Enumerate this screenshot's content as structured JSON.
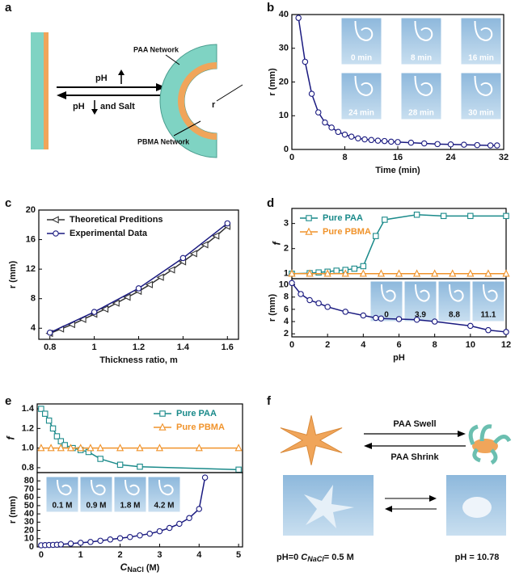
{
  "figure": {
    "panel_labels": [
      "a",
      "b",
      "c",
      "d",
      "e",
      "f"
    ],
    "diagram_a": {
      "paa_network": "PAA Network",
      "pbma_network": "PBMA Network",
      "ph_up": "pH",
      "ph_down": "pH",
      "and_salt": "and Salt",
      "radius": "r"
    },
    "diagram_f": {
      "swell": "PAA Swell",
      "shrink": "PAA Shrink",
      "left_ph": "pH=0",
      "left_c": "C",
      "left_sub": "NaCl",
      "left_rest": "= 0.5 M",
      "right_caption": "pH = 10.78"
    }
  },
  "chart_data": [
    {
      "type": "line",
      "x_label": "Time (min)",
      "y_label": "r (mm)",
      "xlim": [
        0,
        32
      ],
      "xticks": [
        0,
        8,
        16,
        24,
        32
      ],
      "ylim": [
        0,
        40
      ],
      "yticks": [
        0,
        10,
        20,
        30,
        40
      ],
      "inset_labels": [
        "0 min",
        "8 min",
        "16 min",
        "24 min",
        "28 min",
        "30 min"
      ],
      "series": [
        {
          "name": "r",
          "color": "#1a1a80",
          "marker": "circle",
          "x": [
            1,
            2,
            3,
            4,
            5,
            6,
            7,
            8,
            9,
            10,
            11,
            12,
            13,
            14,
            15,
            16,
            18,
            20,
            22,
            24,
            26,
            28,
            30,
            31
          ],
          "values": [
            39,
            26,
            16.5,
            11,
            8,
            6.5,
            5.2,
            4.4,
            3.8,
            3.3,
            3,
            2.8,
            2.6,
            2.5,
            2.3,
            2.2,
            2,
            1.8,
            1.6,
            1.5,
            1.4,
            1.3,
            1.2,
            1.2
          ]
        }
      ]
    },
    {
      "type": "line",
      "x_label": "Thickness ratio, m",
      "y_label": "r (mm)",
      "legend": "upper left",
      "xlim": [
        0.75,
        1.65
      ],
      "xticks": [
        0.8,
        1.0,
        1.2,
        1.4,
        1.6
      ],
      "ylim": [
        2.5,
        20
      ],
      "yticks": [
        4,
        8,
        12,
        16,
        20
      ],
      "series": [
        {
          "name": "Theoretical Preditions",
          "color": "#333333",
          "marker": "triangle-left",
          "x": [
            0.8,
            0.85,
            0.9,
            0.95,
            1.0,
            1.05,
            1.1,
            1.15,
            1.2,
            1.25,
            1.3,
            1.35,
            1.4,
            1.45,
            1.5,
            1.55,
            1.6
          ],
          "values": [
            3.3,
            3.9,
            4.5,
            5.2,
            5.9,
            6.6,
            7.4,
            8.2,
            9.0,
            9.9,
            10.9,
            11.9,
            13.0,
            14.1,
            15.3,
            16.5,
            17.8
          ]
        },
        {
          "name": "Experimental Data",
          "color": "#1a1a80",
          "marker": "circle",
          "x": [
            0.8,
            1.0,
            1.2,
            1.4,
            1.6
          ],
          "values": [
            3.4,
            6.2,
            9.4,
            13.5,
            18.2
          ]
        }
      ]
    },
    {
      "type": "line",
      "y_label": "f",
      "legend": "upper left",
      "xlim": [
        0,
        12
      ],
      "ylim": [
        0.8,
        3.6
      ],
      "yticks": [
        1,
        2,
        3
      ],
      "series": [
        {
          "name": "Pure PAA",
          "color": "#1a8a8a",
          "marker": "square",
          "x": [
            0,
            1,
            1.5,
            2,
            2.5,
            3,
            3.5,
            4,
            4.7,
            5.2,
            7,
            8.5,
            10,
            12
          ],
          "values": [
            1.0,
            1.02,
            1.05,
            1.08,
            1.12,
            1.15,
            1.2,
            1.3,
            2.5,
            3.15,
            3.35,
            3.3,
            3.3,
            3.3
          ]
        },
        {
          "name": "Pure PBMA",
          "color": "#f0932b",
          "marker": "triangle",
          "x": [
            0,
            1,
            2,
            3,
            4,
            5,
            6,
            7,
            8,
            9,
            10,
            11,
            12
          ],
          "values": [
            1.0,
            1.0,
            1.0,
            1.0,
            1.0,
            1.0,
            1.0,
            1.0,
            1.0,
            1.0,
            1.0,
            1.0,
            1.0
          ]
        }
      ]
    },
    {
      "type": "line",
      "x_label": "pH",
      "y_label": "r (mm)",
      "xlim": [
        0,
        12
      ],
      "xticks": [
        0,
        2,
        4,
        6,
        8,
        10,
        12
      ],
      "ylim": [
        1.5,
        11
      ],
      "yticks": [
        2,
        4,
        6,
        8,
        10
      ],
      "inset_labels": [
        "0",
        "3.9",
        "8.8",
        "11.1"
      ],
      "series": [
        {
          "name": "r",
          "color": "#1a1a80",
          "marker": "circle",
          "x": [
            0,
            0.5,
            1,
            1.5,
            2,
            3,
            4,
            4.7,
            5,
            6,
            7,
            8,
            10,
            11,
            12
          ],
          "values": [
            10.3,
            8.5,
            7.5,
            7,
            6.4,
            5.6,
            5,
            4.6,
            4.5,
            4.4,
            4.3,
            4.0,
            3.3,
            2.6,
            2.3
          ]
        }
      ]
    },
    {
      "type": "line",
      "y_label": "f",
      "legend": "upper right",
      "xlim": [
        -0.1,
        5.1
      ],
      "ylim": [
        0.75,
        1.45
      ],
      "yticks": [
        0.8,
        {
          "value": 1,
          "label": "1.0"
        },
        1.2,
        1.4
      ],
      "series": [
        {
          "name": "Pure PAA",
          "color": "#1a8a8a",
          "marker": "square",
          "x": [
            0,
            0.1,
            0.2,
            0.3,
            0.4,
            0.5,
            0.6,
            0.8,
            1.0,
            1.2,
            1.5,
            2,
            2.5,
            5
          ],
          "values": [
            1.4,
            1.35,
            1.28,
            1.2,
            1.12,
            1.07,
            1.03,
            1.0,
            0.98,
            0.96,
            0.89,
            0.83,
            0.81,
            0.78
          ]
        },
        {
          "name": "Pure PBMA",
          "color": "#f0932b",
          "marker": "triangle",
          "x": [
            0,
            0.25,
            0.5,
            0.75,
            1,
            1.25,
            1.5,
            2,
            2.5,
            3,
            4,
            5
          ],
          "values": [
            1.0,
            1.0,
            1.0,
            1.0,
            1.0,
            1.0,
            1.0,
            1.0,
            1.0,
            1.0,
            1.0,
            1.0
          ]
        }
      ]
    },
    {
      "type": "line",
      "x_label": "C",
      "x_label_sub": "NaCl",
      "x_label_unit": "(M)",
      "y_label": "r (mm)",
      "xlim": [
        -0.1,
        5.1
      ],
      "xticks": [
        0,
        1,
        2,
        3,
        4,
        5
      ],
      "ylim": [
        0,
        90
      ],
      "yticks": [
        0,
        10,
        20,
        30,
        40,
        50,
        60,
        70,
        80
      ],
      "inset_labels": [
        "0.1 M",
        "0.9 M",
        "1.8 M",
        "4.2 M"
      ],
      "series": [
        {
          "name": "r",
          "color": "#1a1a80",
          "marker": "circle",
          "x": [
            0,
            0.1,
            0.2,
            0.3,
            0.4,
            0.5,
            0.75,
            1,
            1.25,
            1.5,
            1.75,
            2,
            2.25,
            2.5,
            2.75,
            3,
            3.25,
            3.5,
            3.75,
            4,
            4.15
          ],
          "values": [
            2,
            2.2,
            2.3,
            2.5,
            2.7,
            3,
            4,
            5,
            6,
            7.5,
            9,
            10.5,
            12,
            14,
            16,
            19,
            23,
            28,
            35,
            46,
            84
          ]
        }
      ]
    }
  ]
}
